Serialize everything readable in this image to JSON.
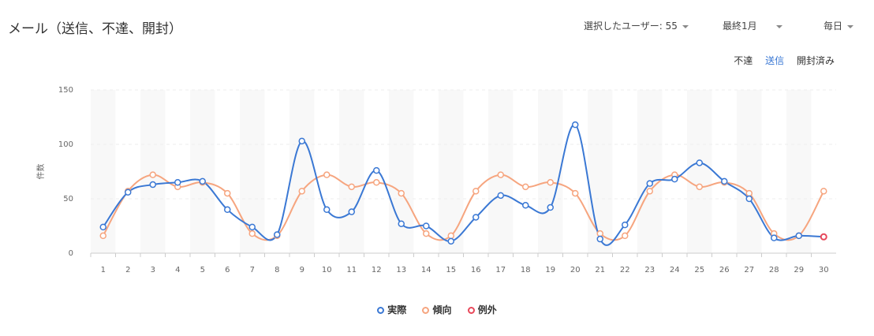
{
  "header": {
    "title": "メール（送信、不達、開封）",
    "users_label": "選択したユーザー: 55",
    "period_label": "最終1月",
    "interval_label": "毎日"
  },
  "tabs": [
    {
      "label": "不達",
      "active": false
    },
    {
      "label": "送信",
      "active": true
    },
    {
      "label": "開封済み",
      "active": false
    }
  ],
  "colors": {
    "actual": "#3a78d4",
    "trend": "#f6a57f",
    "exception": "#e8485a"
  },
  "legend": [
    {
      "label": "実際",
      "color": "#3a78d4"
    },
    {
      "label": "傾向",
      "color": "#f6a57f"
    },
    {
      "label": "例外",
      "color": "#e8485a"
    }
  ],
  "chart_data": {
    "type": "line",
    "ylabel": "件数",
    "xlabel": "",
    "ylim": [
      0,
      150
    ],
    "yticks": [
      "0",
      "50",
      "100",
      "150"
    ],
    "categories": [
      "1",
      "2",
      "3",
      "4",
      "5",
      "6",
      "7",
      "8",
      "9",
      "10",
      "11",
      "12",
      "13",
      "14",
      "15",
      "16",
      "17",
      "18",
      "19",
      "20",
      "21",
      "22",
      "23",
      "24",
      "25",
      "26",
      "27",
      "28",
      "29",
      "30"
    ],
    "series": [
      {
        "name": "実際",
        "values": [
          24,
          56,
          63,
          65,
          66,
          40,
          24,
          17,
          103,
          40,
          38,
          76,
          27,
          25,
          11,
          33,
          53,
          44,
          42,
          118,
          13,
          26,
          64,
          68,
          83,
          66,
          50,
          14,
          16,
          15
        ]
      },
      {
        "name": "傾向",
        "values": [
          16,
          57,
          72,
          61,
          65,
          55,
          18,
          16,
          57,
          72,
          61,
          65,
          55,
          18,
          16,
          57,
          72,
          61,
          65,
          55,
          18,
          16,
          57,
          72,
          61,
          65,
          55,
          18,
          16,
          57
        ]
      }
    ],
    "exceptions": [
      {
        "x": "30",
        "y": 15
      }
    ],
    "grid": true,
    "legend_position": "bottom-center"
  }
}
